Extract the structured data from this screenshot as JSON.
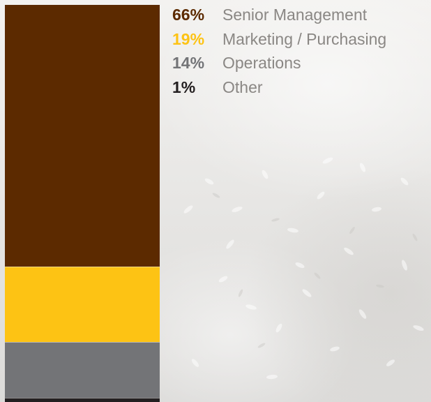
{
  "chart_data": {
    "type": "bar",
    "orientation": "stacked-vertical",
    "categories": [
      "Senior Management",
      "Marketing / Purchasing",
      "Operations",
      "Other"
    ],
    "values": [
      66,
      19,
      14,
      1
    ],
    "value_labels": [
      "66%",
      "19%",
      "14%",
      "1%"
    ],
    "colors": [
      "#5c2a00",
      "#fdc314",
      "#737477",
      "#231f20"
    ],
    "unit": "%",
    "legend": "right",
    "grid": false
  }
}
